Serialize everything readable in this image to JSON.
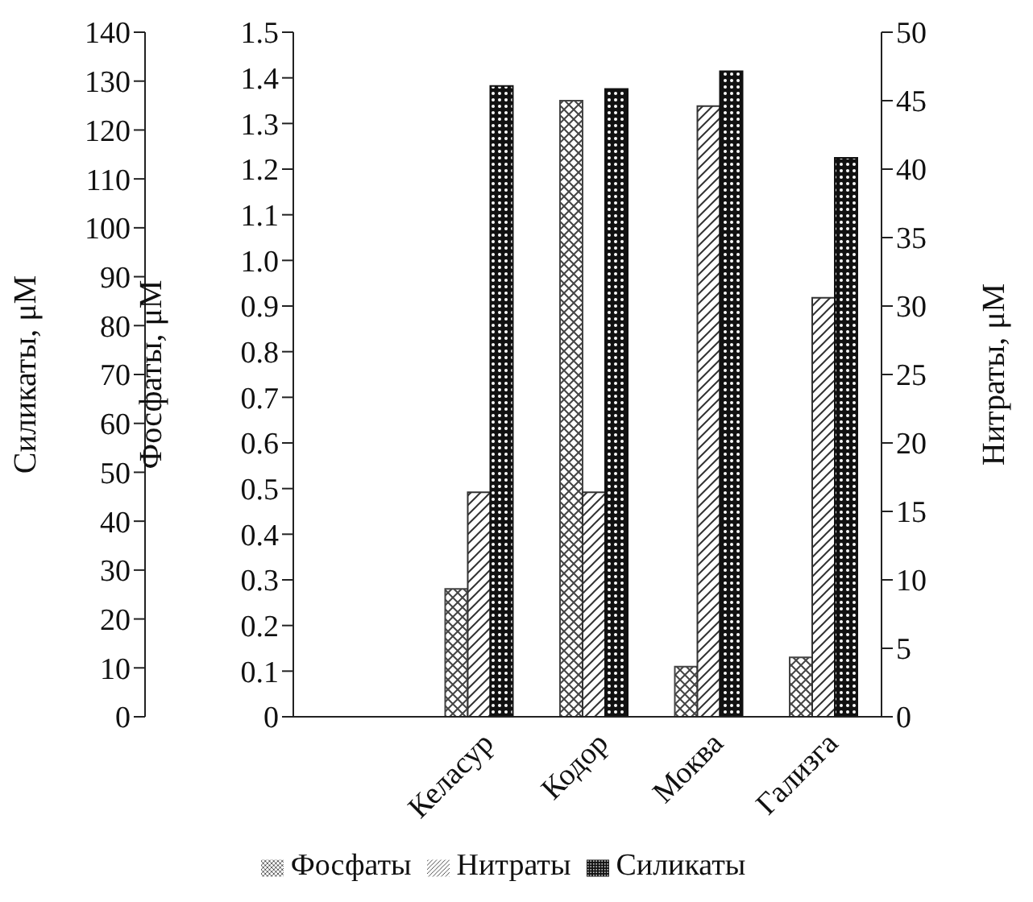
{
  "chart_data": {
    "type": "bar",
    "categories": [
      "Келасур",
      "Кодор",
      "Моква",
      "Гализга"
    ],
    "series": [
      {
        "name": "Фосфаты",
        "color": "#444444",
        "axis": "y",
        "values": [
          0.28,
          1.35,
          0.11,
          0.13
        ]
      },
      {
        "name": "Нитраты",
        "color": "#333333",
        "axis": "y2",
        "values": [
          16.4,
          16.4,
          44.6,
          30.6
        ]
      },
      {
        "name": "Силикаты",
        "color": "#111111",
        "axis": "y3",
        "values": [
          129,
          128.4,
          132,
          114.3
        ]
      }
    ],
    "y3label": "Силикаты, μM",
    "y3lim": [
      0,
      140
    ],
    "y3ticks": [
      0,
      10,
      20,
      30,
      40,
      50,
      60,
      70,
      80,
      90,
      100,
      110,
      120,
      130,
      140
    ],
    "ylabel": "Фосфаты, μM",
    "ylim": [
      0,
      1.5
    ],
    "yticks": [
      0,
      0.1,
      0.2,
      0.3,
      0.4,
      0.5,
      0.6,
      0.7,
      0.8,
      0.9,
      {
        "value": 1,
        "label": "1.0"
      },
      1.1,
      1.2,
      1.3,
      1.4,
      1.5
    ],
    "y2label": "Нитраты, μM",
    "y2lim": [
      0,
      50
    ],
    "y2ticks": [
      0,
      5,
      10,
      15,
      20,
      25,
      30,
      35,
      40,
      45,
      50
    ],
    "grid": false,
    "legend": "bottom"
  }
}
